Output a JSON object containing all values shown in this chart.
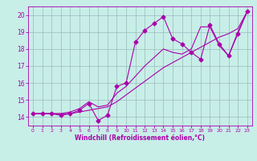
{
  "title": "",
  "xlabel": "Windchill (Refroidissement éolien,°C)",
  "xlim": [
    -0.5,
    23.5
  ],
  "ylim": [
    13.5,
    20.5
  ],
  "xticks": [
    0,
    1,
    2,
    3,
    4,
    5,
    6,
    7,
    8,
    9,
    10,
    11,
    12,
    13,
    14,
    15,
    16,
    17,
    18,
    19,
    20,
    21,
    22,
    23
  ],
  "yticks": [
    14,
    15,
    16,
    17,
    18,
    19,
    20
  ],
  "line_color": "#aa00aa",
  "bg_color": "#c8eee8",
  "grid_color": "#99bbbb",
  "line1_x": [
    0,
    1,
    2,
    3,
    4,
    5,
    6,
    7,
    8,
    9,
    10,
    11,
    12,
    13,
    14,
    15,
    16,
    17,
    18,
    19,
    20,
    21,
    22,
    23
  ],
  "line1_y": [
    14.2,
    14.2,
    14.2,
    14.1,
    14.2,
    14.4,
    14.8,
    13.8,
    14.1,
    15.8,
    16.0,
    18.4,
    19.1,
    19.5,
    19.9,
    18.6,
    18.3,
    17.8,
    17.4,
    19.4,
    18.3,
    17.6,
    18.9,
    20.2
  ],
  "line2_x": [
    0,
    1,
    2,
    3,
    4,
    5,
    6,
    7,
    8,
    9,
    10,
    11,
    12,
    13,
    14,
    15,
    16,
    17,
    18,
    19,
    20,
    21,
    22,
    23
  ],
  "line2_y": [
    14.2,
    14.2,
    14.2,
    14.2,
    14.2,
    14.3,
    14.4,
    14.5,
    14.6,
    14.9,
    15.3,
    15.7,
    16.1,
    16.5,
    16.9,
    17.2,
    17.5,
    17.8,
    18.1,
    18.4,
    18.7,
    18.9,
    19.2,
    20.2
  ],
  "line3_x": [
    0,
    1,
    2,
    3,
    4,
    5,
    6,
    7,
    8,
    9,
    10,
    11,
    12,
    13,
    14,
    15,
    16,
    17,
    18,
    19,
    20,
    21,
    22,
    23
  ],
  "line3_y": [
    14.2,
    14.2,
    14.2,
    14.2,
    14.3,
    14.5,
    14.9,
    14.6,
    14.7,
    15.4,
    15.8,
    16.4,
    17.0,
    17.5,
    18.0,
    17.8,
    17.7,
    18.0,
    19.3,
    19.3,
    18.2,
    17.6,
    19.0,
    20.2
  ],
  "marker": "D",
  "markersize": 2.5,
  "linewidth": 0.8,
  "xtick_fontsize": 4.5,
  "ytick_fontsize": 5.5,
  "xlabel_fontsize": 5.5
}
